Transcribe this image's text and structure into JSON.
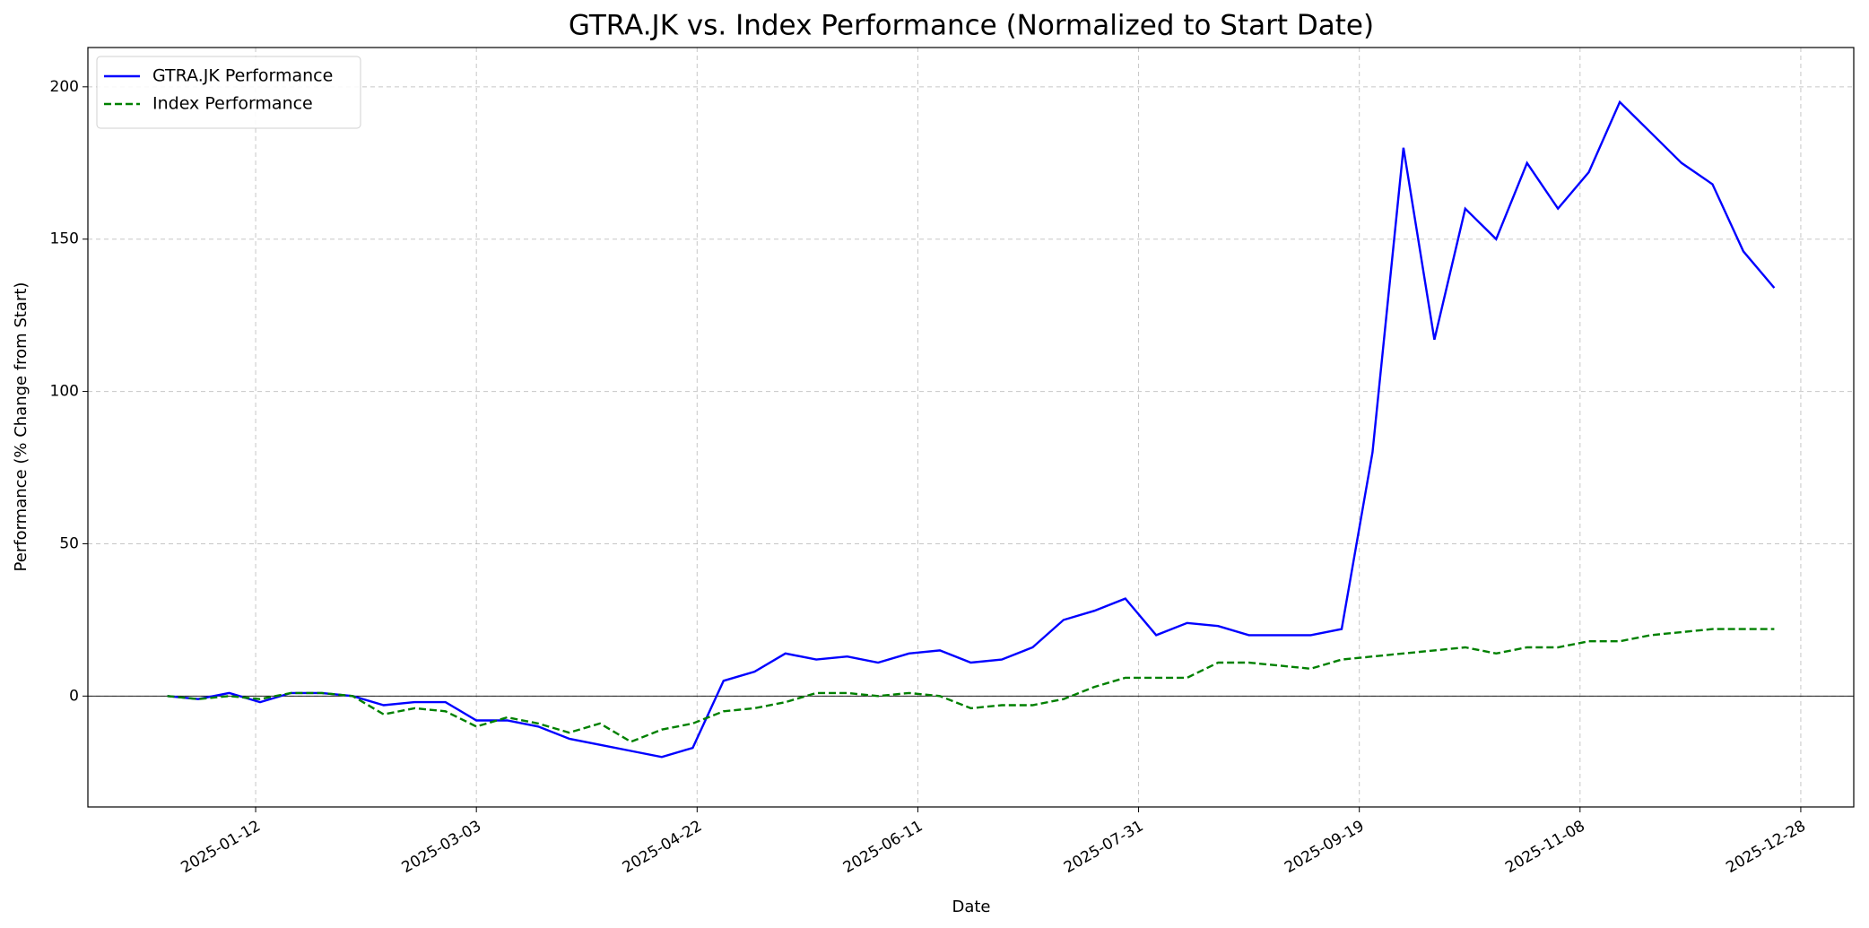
{
  "chart_data": {
    "type": "line",
    "title": "GTRA.JK vs. Index Performance (Normalized to Start Date)",
    "x_label": "Date",
    "y_label": "Performance (% Change from Start)",
    "x": [
      "2024-12-23",
      "2024-12-30",
      "2025-01-06",
      "2025-01-13",
      "2025-01-20",
      "2025-01-27",
      "2025-02-03",
      "2025-02-10",
      "2025-02-17",
      "2025-02-24",
      "2025-03-03",
      "2025-03-10",
      "2025-03-17",
      "2025-03-24",
      "2025-03-31",
      "2025-04-07",
      "2025-04-14",
      "2025-04-21",
      "2025-04-28",
      "2025-05-05",
      "2025-05-12",
      "2025-05-19",
      "2025-05-26",
      "2025-06-02",
      "2025-06-09",
      "2025-06-16",
      "2025-06-23",
      "2025-06-30",
      "2025-07-07",
      "2025-07-14",
      "2025-07-21",
      "2025-07-28",
      "2025-08-04",
      "2025-08-11",
      "2025-08-18",
      "2025-08-25",
      "2025-09-01",
      "2025-09-08",
      "2025-09-15",
      "2025-09-22",
      "2025-09-29",
      "2025-10-06",
      "2025-10-13",
      "2025-10-20",
      "2025-10-27",
      "2025-11-03",
      "2025-11-10",
      "2025-11-17",
      "2025-11-24",
      "2025-12-01",
      "2025-12-08",
      "2025-12-15",
      "2025-12-22"
    ],
    "series": [
      {
        "name": "GTRA.JK Performance",
        "color": "#0000ff",
        "dash": "solid",
        "values": [
          0,
          -1,
          1,
          -2,
          1,
          1,
          0,
          -3,
          -2,
          -2,
          -8,
          -8,
          -10,
          -14,
          -16,
          -18,
          -20,
          -17,
          5,
          8,
          14,
          12,
          13,
          11,
          14,
          15,
          11,
          12,
          16,
          25,
          28,
          32,
          20,
          24,
          23,
          20,
          20,
          20,
          22,
          80,
          180,
          117,
          160,
          150,
          175,
          160,
          172,
          195,
          185,
          175,
          168,
          146,
          134
        ]
      },
      {
        "name": "Index Performance",
        "color": "#008000",
        "dash": "dashed",
        "values": [
          0,
          -1,
          0,
          -1,
          1,
          1,
          0,
          -6,
          -4,
          -5,
          -10,
          -7,
          -9,
          -12,
          -9,
          -15,
          -11,
          -9,
          -5,
          -4,
          -2,
          1,
          1,
          0,
          1,
          0,
          -4,
          -3,
          -3,
          -1,
          3,
          6,
          6,
          6,
          11,
          11,
          10,
          9,
          12,
          13,
          14,
          15,
          16,
          14,
          16,
          16,
          18,
          18,
          20,
          21,
          22,
          22,
          22
        ]
      }
    ],
    "xlim": [
      "2024-12-05",
      "2026-01-09"
    ],
    "xticks": [
      "2025-01-12",
      "2025-03-03",
      "2025-04-22",
      "2025-06-11",
      "2025-07-31",
      "2025-09-19",
      "2025-11-08",
      "2025-12-28"
    ],
    "ylim": [
      -36.4,
      212.9
    ],
    "yticks": [
      0,
      50,
      100,
      150,
      200
    ],
    "grid": true,
    "legend": "upper left"
  }
}
